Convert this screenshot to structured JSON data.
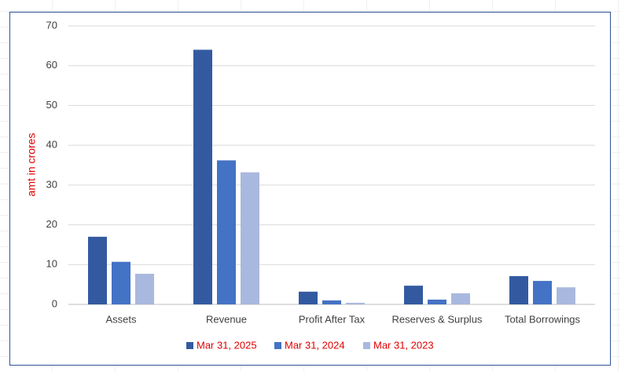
{
  "chart_data": {
    "type": "bar",
    "y_label": "amt in crores",
    "categories": [
      "Assets",
      "Revenue",
      "Profit After Tax",
      "Reserves & Surplus",
      "Total Borrowings"
    ],
    "series": [
      {
        "name": "Mar 31, 2025",
        "color": "#335aa0",
        "values": [
          17.0,
          64.0,
          3.2,
          4.7,
          7.1
        ]
      },
      {
        "name": "Mar 31, 2024",
        "color": "#4472c4",
        "values": [
          10.7,
          36.2,
          1.0,
          1.2,
          5.9
        ]
      },
      {
        "name": "Mar 31, 2023",
        "color": "#a9b8de",
        "values": [
          7.7,
          33.2,
          0.4,
          2.8,
          4.3
        ]
      }
    ],
    "ylim": [
      0,
      70
    ],
    "yticks": [
      0,
      10,
      20,
      30,
      40,
      50,
      60,
      70
    ],
    "grid": true,
    "legend": "bottom"
  }
}
